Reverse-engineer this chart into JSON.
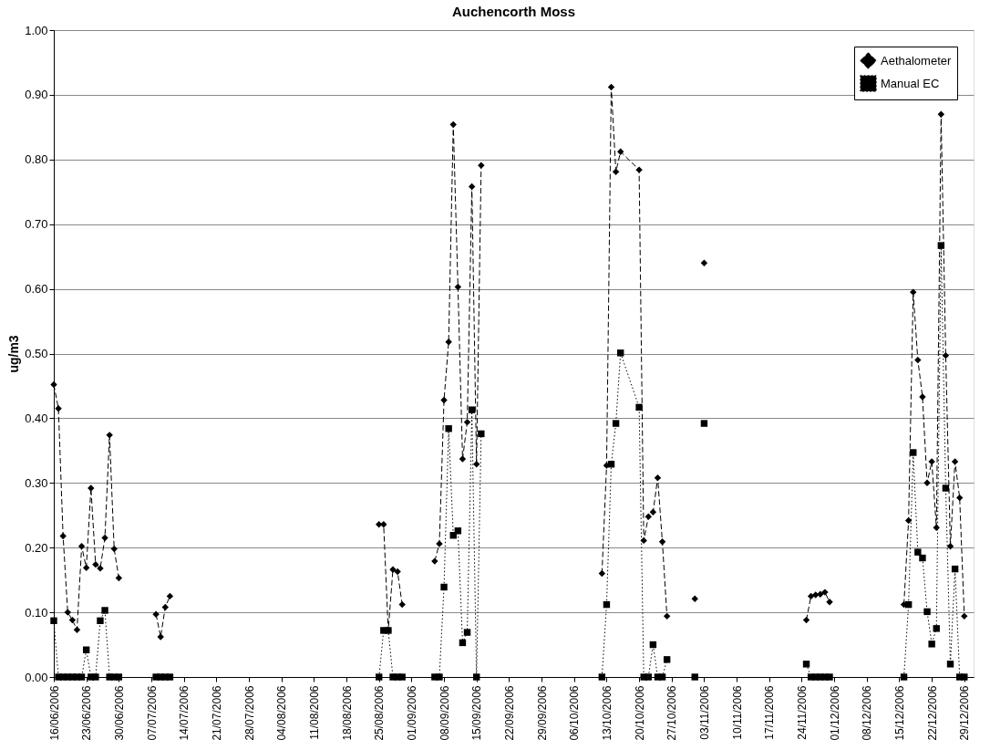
{
  "chart_data": {
    "type": "line",
    "title": "Auchencorth Moss",
    "ylabel": "ug/m3",
    "x": [
      "2006-06-16",
      "2006-06-17",
      "2006-06-18",
      "2006-06-19",
      "2006-06-20",
      "2006-06-21",
      "2006-06-22",
      "2006-06-23",
      "2006-06-24",
      "2006-06-25",
      "2006-06-26",
      "2006-06-27",
      "2006-06-28",
      "2006-06-29",
      "2006-06-30",
      "2006-07-04",
      "2006-07-08",
      "2006-07-09",
      "2006-07-10",
      "2006-07-11",
      "2006-08-15",
      "2006-08-25",
      "2006-08-26",
      "2006-08-27",
      "2006-08-28",
      "2006-08-29",
      "2006-08-30",
      "2006-09-03",
      "2006-09-06",
      "2006-09-07",
      "2006-09-08",
      "2006-09-09",
      "2006-09-10",
      "2006-09-11",
      "2006-09-12",
      "2006-09-13",
      "2006-09-14",
      "2006-09-15",
      "2006-09-16",
      "2006-10-01",
      "2006-10-12",
      "2006-10-13",
      "2006-10-14",
      "2006-10-15",
      "2006-10-16",
      "2006-10-20",
      "2006-10-21",
      "2006-10-22",
      "2006-10-23",
      "2006-10-24",
      "2006-10-25",
      "2006-10-26",
      "2006-10-29",
      "2006-11-01",
      "2006-11-02",
      "2006-11-03",
      "2006-11-15",
      "2006-11-25",
      "2006-11-26",
      "2006-11-27",
      "2006-11-28",
      "2006-11-29",
      "2006-11-30",
      "2006-12-08",
      "2006-12-16",
      "2006-12-17",
      "2006-12-18",
      "2006-12-19",
      "2006-12-20",
      "2006-12-21",
      "2006-12-22",
      "2006-12-23",
      "2006-12-24",
      "2006-12-25",
      "2006-12-26",
      "2006-12-27",
      "2006-12-28",
      "2006-12-29"
    ],
    "series": [
      {
        "name": "Aethalometer",
        "color": "#000000",
        "marker": "diamond",
        "line_style": "dashed",
        "values": [
          0.452,
          0.415,
          0.218,
          0.1,
          0.088,
          0.073,
          0.202,
          0.169,
          0.292,
          0.174,
          0.168,
          0.215,
          0.374,
          0.198,
          0.153,
          null,
          0.097,
          0.062,
          0.108,
          0.125,
          null,
          0.236,
          0.236,
          0.072,
          0.166,
          0.163,
          0.112,
          null,
          0.179,
          0.206,
          0.428,
          0.518,
          0.854,
          0.603,
          0.337,
          0.394,
          0.758,
          0.329,
          0.791,
          null,
          0.16,
          0.327,
          0.912,
          0.781,
          0.812,
          0.784,
          0.211,
          0.248,
          0.255,
          0.308,
          0.209,
          0.094,
          null,
          0.121,
          null,
          0.64,
          null,
          0.088,
          0.125,
          0.127,
          0.128,
          0.131,
          0.116,
          null,
          0.112,
          0.242,
          0.595,
          0.49,
          0.433,
          0.3,
          0.333,
          0.231,
          0.87,
          0.497,
          0.202,
          0.333,
          0.277,
          0.094
        ]
      },
      {
        "name": "Manual EC",
        "color": "#000000",
        "marker": "square",
        "line_style": "dotted",
        "values": [
          0.087,
          0,
          0,
          0,
          0,
          0,
          0,
          0.042,
          0,
          0,
          0.087,
          0.103,
          0,
          0,
          0,
          null,
          0,
          0,
          0,
          0,
          null,
          0,
          0.072,
          0.072,
          0,
          0,
          0,
          null,
          0,
          0,
          0.139,
          0.384,
          0.219,
          0.226,
          0.053,
          0.069,
          0.413,
          0,
          0.376,
          null,
          0,
          0.112,
          0.329,
          0.392,
          0.501,
          0.417,
          0,
          0,
          0.05,
          0,
          0,
          0.027,
          null,
          0,
          null,
          0.392,
          null,
          0.02,
          0,
          0,
          0,
          0,
          0,
          null,
          0,
          0.112,
          0.347,
          0.193,
          0.184,
          0.101,
          0.051,
          0.075,
          0.667,
          0.292,
          0.02,
          0.167,
          0,
          0
        ]
      }
    ],
    "xlim": [
      "2006-06-16",
      "2006-12-31"
    ],
    "xticks": [
      {
        "value": "2006-06-16",
        "label": "16/06/2006"
      },
      {
        "value": "2006-06-23",
        "label": "23/06/2006"
      },
      {
        "value": "2006-06-30",
        "label": "30/06/2006"
      },
      {
        "value": "2006-07-07",
        "label": "07/07/2006"
      },
      {
        "value": "2006-07-14",
        "label": "14/07/2006"
      },
      {
        "value": "2006-07-21",
        "label": "21/07/2006"
      },
      {
        "value": "2006-07-28",
        "label": "28/07/2006"
      },
      {
        "value": "2006-08-04",
        "label": "04/08/2006"
      },
      {
        "value": "2006-08-11",
        "label": "11/08/2006"
      },
      {
        "value": "2006-08-18",
        "label": "18/08/2006"
      },
      {
        "value": "2006-08-25",
        "label": "25/08/2006"
      },
      {
        "value": "2006-09-01",
        "label": "01/09/2006"
      },
      {
        "value": "2006-09-08",
        "label": "08/09/2006"
      },
      {
        "value": "2006-09-15",
        "label": "15/09/2006"
      },
      {
        "value": "2006-09-22",
        "label": "22/09/2006"
      },
      {
        "value": "2006-09-29",
        "label": "29/09/2006"
      },
      {
        "value": "2006-10-06",
        "label": "06/10/2006"
      },
      {
        "value": "2006-10-13",
        "label": "13/10/2006"
      },
      {
        "value": "2006-10-20",
        "label": "20/10/2006"
      },
      {
        "value": "2006-10-27",
        "label": "27/10/2006"
      },
      {
        "value": "2006-11-03",
        "label": "03/11/2006"
      },
      {
        "value": "2006-11-10",
        "label": "10/11/2006"
      },
      {
        "value": "2006-11-17",
        "label": "17/11/2006"
      },
      {
        "value": "2006-11-24",
        "label": "24/11/2006"
      },
      {
        "value": "2006-12-01",
        "label": "01/12/2006"
      },
      {
        "value": "2006-12-08",
        "label": "08/12/2006"
      },
      {
        "value": "2006-12-15",
        "label": "15/12/2006"
      },
      {
        "value": "2006-12-22",
        "label": "22/12/2006"
      },
      {
        "value": "2006-12-29",
        "label": "29/12/2006"
      }
    ],
    "ylim": [
      0,
      1
    ],
    "yticks": [
      {
        "value": 0,
        "label": "0.00"
      },
      {
        "value": 0.1,
        "label": "0.10"
      },
      {
        "value": 0.2,
        "label": "0.20"
      },
      {
        "value": 0.3,
        "label": "0.30"
      },
      {
        "value": 0.4,
        "label": "0.40"
      },
      {
        "value": 0.5,
        "label": "0.50"
      },
      {
        "value": 0.6,
        "label": "0.60"
      },
      {
        "value": 0.7,
        "label": "0.70"
      },
      {
        "value": 0.8,
        "label": "0.80"
      },
      {
        "value": 0.9,
        "label": "0.90"
      },
      {
        "value": 1,
        "label": "1.00"
      }
    ],
    "grid": "y",
    "legend": "top right"
  }
}
